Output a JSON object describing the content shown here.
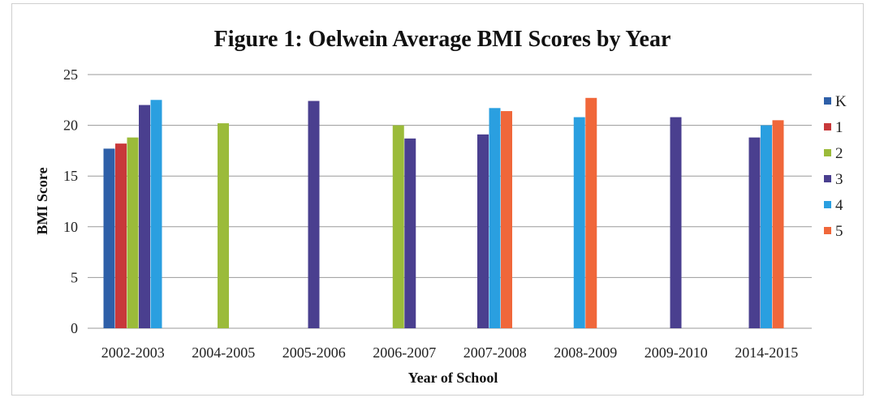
{
  "chart_data": {
    "type": "bar",
    "title": "Figure 1: Oelwein Average BMI Scores by Year",
    "xlabel": "Year of School",
    "ylabel": "BMI Score",
    "ylim": [
      0,
      25
    ],
    "yticks": [
      0,
      5,
      10,
      15,
      20,
      25
    ],
    "grid": true,
    "legend_position": "right",
    "categories": [
      "2002-2003",
      "2004-2005",
      "2005-2006",
      "2006-2007",
      "2007-2008",
      "2008-2009",
      "2009-2010",
      "2014-2015"
    ],
    "series": [
      {
        "name": "K",
        "color": "#2e5fa8",
        "values": [
          17.7,
          null,
          null,
          null,
          null,
          null,
          null,
          null
        ]
      },
      {
        "name": "1",
        "color": "#c8383a",
        "values": [
          18.2,
          null,
          null,
          null,
          null,
          null,
          null,
          null
        ]
      },
      {
        "name": "2",
        "color": "#9bbb3a",
        "values": [
          18.8,
          20.2,
          null,
          20.0,
          null,
          null,
          null,
          null
        ]
      },
      {
        "name": "3",
        "color": "#4a3f8f",
        "values": [
          22.0,
          null,
          22.4,
          18.7,
          19.1,
          null,
          20.8,
          18.8
        ]
      },
      {
        "name": "4",
        "color": "#2a9fe0",
        "values": [
          22.5,
          null,
          null,
          null,
          21.7,
          20.8,
          null,
          20.0
        ]
      },
      {
        "name": "5",
        "color": "#f0673a",
        "values": [
          null,
          null,
          null,
          null,
          21.4,
          22.7,
          null,
          20.5
        ]
      }
    ]
  }
}
